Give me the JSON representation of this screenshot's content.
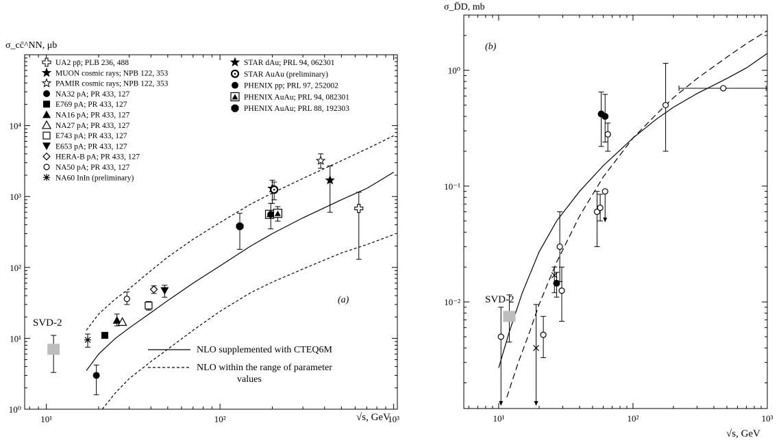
{
  "chart_data": [
    {
      "type": "scatter",
      "panel_label": "(a)",
      "ylabel": "σ_cc̄^NN, μb",
      "xlabel": "√s, GeV",
      "x_scale": "log",
      "y_scale": "log",
      "xlim": [
        7.5,
        1050
      ],
      "ylim": [
        1,
        100000
      ],
      "x_ticks": [
        {
          "v": 10,
          "label": "10¹"
        },
        {
          "v": 100,
          "label": "10²"
        },
        {
          "v": 1000,
          "label": "10³"
        }
      ],
      "y_ticks": [
        {
          "v": 1,
          "label": "10⁰"
        },
        {
          "v": 10,
          "label": "10¹"
        },
        {
          "v": 100,
          "label": "10²"
        },
        {
          "v": 1000,
          "label": "10³"
        },
        {
          "v": 10000,
          "label": "10⁴"
        }
      ],
      "annotation_svd": "SVD-2",
      "legend_left": [
        {
          "marker": "cross-open",
          "label": "UA2 pp̄; PLB 236, 488"
        },
        {
          "marker": "star-filled",
          "label": "MUON cosmic rays; NPB 122, 353"
        },
        {
          "marker": "star-open",
          "label": "PAMIR cosmic rays; NPB 122, 353"
        },
        {
          "marker": "circle-filled",
          "label": "NA32 pA; PR 433, 127"
        },
        {
          "marker": "square-filled",
          "label": "E769 pA; PR 433, 127"
        },
        {
          "marker": "triangle-filled",
          "label": "NA16 pA; PR 433, 127"
        },
        {
          "marker": "triangle-open",
          "label": "NA27 pA; PR 433, 127"
        },
        {
          "marker": "square-open",
          "label": "E743 pA; PR 433, 127"
        },
        {
          "marker": "triangle-down-filled",
          "label": "E653 pA; PR 433, 127"
        },
        {
          "marker": "diamond-open",
          "label": "HERA-B pA; PR 433, 127"
        },
        {
          "marker": "circle-open",
          "label": "NA50 pA; PR 433, 127"
        },
        {
          "marker": "asterisk",
          "label": "NA60 InIn (preliminary)"
        }
      ],
      "legend_right": [
        {
          "marker": "star-filled",
          "label": "STAR dAu; PRL 94, 062301"
        },
        {
          "marker": "circle-dot",
          "label": "STAR AuAu (preliminary)"
        },
        {
          "marker": "circle-filled",
          "label": "PHENIX pp; PRL 97, 252002"
        },
        {
          "marker": "triangle-in-square",
          "label": "PHENIX AuAu; PRL 94, 082301"
        },
        {
          "marker": "octagon-filled",
          "label": "PHENIX AuAu; PRL 88, 192303"
        }
      ],
      "line_legend": [
        {
          "style": "solid",
          "label": "NLO supplemented with CTEQ6M"
        },
        {
          "style": "dashed",
          "label": "NLO within the range of parameter"
        },
        {
          "style": "none",
          "label": "values"
        }
      ],
      "series": [
        {
          "name": "NLO supplemented with CTEQ6M",
          "style": "solid",
          "x": [
            17,
            20,
            25,
            30,
            40,
            50,
            70,
            100,
            150,
            200,
            300,
            500,
            700,
            1000
          ],
          "y": [
            3.5,
            6,
            10,
            14,
            23,
            34,
            60,
            105,
            200,
            300,
            500,
            900,
            1300,
            2200
          ]
        },
        {
          "name": "dashed-upper",
          "style": "dashed",
          "x": [
            17,
            20,
            25,
            30,
            40,
            50,
            70,
            100,
            150,
            200,
            300,
            500,
            700,
            1000
          ],
          "y": [
            13,
            22,
            36,
            50,
            90,
            140,
            250,
            430,
            780,
            1120,
            1800,
            3200,
            4700,
            7200
          ]
        },
        {
          "name": "dashed-lower",
          "style": "dashed",
          "x": [
            21,
            25,
            30,
            40,
            50,
            70,
            100,
            150,
            200,
            300,
            500,
            700,
            1000
          ],
          "y": [
            1,
            1.7,
            2.7,
            4.7,
            7,
            13,
            24,
            44,
            62,
            95,
            160,
            210,
            290
          ]
        }
      ],
      "points": [
        {
          "marker": "square-gray",
          "x": 11,
          "y": 7,
          "lo": 3.3,
          "hi": 11
        },
        {
          "marker": "asterisk",
          "x": 17.3,
          "y": 9.5,
          "lo": 7.5,
          "hi": 11.5
        },
        {
          "marker": "circle-filled",
          "x": 19.4,
          "y": 3,
          "lo": 1.6,
          "hi": 4.2
        },
        {
          "marker": "square-filled",
          "x": 21.7,
          "y": 11
        },
        {
          "marker": "triangle-filled",
          "x": 25.5,
          "y": 18,
          "lo": 15,
          "hi": 22
        },
        {
          "marker": "triangle-open",
          "x": 27.4,
          "y": 17
        },
        {
          "marker": "circle-open",
          "x": 29.1,
          "y": 36,
          "lo": 30,
          "hi": 45
        },
        {
          "marker": "square-open",
          "x": 38.8,
          "y": 29,
          "lo": 25,
          "hi": 33
        },
        {
          "marker": "diamond-open",
          "x": 41.6,
          "y": 49,
          "lo": 43,
          "hi": 55
        },
        {
          "marker": "triangle-down-filled",
          "x": 48,
          "y": 47,
          "lo": 38,
          "hi": 56
        },
        {
          "marker": "octagon-filled",
          "x": 130,
          "y": 380,
          "lo": 180,
          "hi": 580
        },
        {
          "marker": "triangle-in-square",
          "x": 193,
          "y": 560,
          "lo": 500,
          "hi": 620
        },
        {
          "marker": "circle-filled",
          "x": 196,
          "y": 560,
          "lo": 350,
          "hi": 800
        },
        {
          "marker": "star-filled",
          "x": 200,
          "y": 1300,
          "lo": 800,
          "hi": 1700
        },
        {
          "marker": "circle-dot",
          "x": 205,
          "y": 1250,
          "lo": 900,
          "hi": 1600
        },
        {
          "marker": "triangle-in-square",
          "x": 215,
          "y": 580,
          "lo": 450,
          "hi": 720
        },
        {
          "marker": "star-open",
          "x": 380,
          "y": 3200,
          "lo": 2500,
          "hi": 4000
        },
        {
          "marker": "star-filled",
          "x": 430,
          "y": 1700,
          "lo": 600,
          "hi": 2700
        },
        {
          "marker": "cross-open",
          "x": 630,
          "y": 680,
          "lo": 130,
          "hi": 1150
        }
      ]
    },
    {
      "type": "scatter",
      "panel_label": "(b)",
      "ylabel": "σ_D̄D, mb",
      "xlabel": "√s, GeV",
      "x_scale": "log",
      "y_scale": "log",
      "xlim": [
        5.5,
        1000
      ],
      "ylim": [
        0.0012,
        3
      ],
      "x_ticks": [
        {
          "v": 10,
          "label": "10¹"
        },
        {
          "v": 100,
          "label": "10²"
        },
        {
          "v": 1000,
          "label": "10³"
        }
      ],
      "y_ticks": [
        {
          "v": 0.01,
          "label": "10⁻²"
        },
        {
          "v": 0.1,
          "label": "10⁻¹"
        },
        {
          "v": 1,
          "label": "10⁰"
        }
      ],
      "annotation_svd": "SVD-2",
      "series": [
        {
          "name": "solid",
          "style": "solid",
          "x": [
            10,
            12,
            15,
            20,
            27,
            40,
            60,
            100,
            150,
            200,
            300,
            500,
            700,
            1000
          ],
          "y": [
            0.0027,
            0.0055,
            0.012,
            0.027,
            0.05,
            0.09,
            0.15,
            0.26,
            0.38,
            0.48,
            0.63,
            0.85,
            1.05,
            1.4
          ]
        },
        {
          "name": "dashed",
          "style": "dashed",
          "x": [
            11.5,
            14,
            17,
            20,
            27,
            40,
            60,
            100,
            150,
            200,
            300,
            500,
            700,
            1000
          ],
          "y": [
            0.0015,
            0.003,
            0.0055,
            0.0095,
            0.022,
            0.055,
            0.12,
            0.26,
            0.42,
            0.58,
            0.85,
            1.3,
            1.7,
            2.2
          ]
        }
      ],
      "points": [
        {
          "marker": "square-gray",
          "x": 12,
          "y": 0.0075,
          "lo": 0.0045,
          "hi": 0.0115
        },
        {
          "marker": "circle-open",
          "x": 10.4,
          "y": 0.005,
          "lo": 0.0013,
          "hi": 0.009,
          "arrow": "down"
        },
        {
          "marker": "cross",
          "x": 19,
          "y": 0.004,
          "lo": 0.0013,
          "hi": 0.0095,
          "arrow": "down"
        },
        {
          "marker": "circle-open",
          "x": 21.5,
          "y": 0.0052,
          "lo": 0.0033,
          "hi": 0.0075
        },
        {
          "marker": "cross",
          "x": 26,
          "y": 0.017,
          "lo": 0.012,
          "hi": 0.02
        },
        {
          "marker": "circle-filled",
          "x": 27,
          "y": 0.0145,
          "lo": 0.011,
          "hi": 0.018
        },
        {
          "marker": "circle-open",
          "x": 28.5,
          "y": 0.03,
          "lo": 0.015,
          "hi": 0.06
        },
        {
          "marker": "circle-open",
          "x": 29.5,
          "y": 0.0125,
          "lo": 0.0068,
          "hi": 0.02
        },
        {
          "marker": "circle-open",
          "x": 54,
          "y": 0.06,
          "lo": 0.03,
          "hi": 0.09
        },
        {
          "marker": "circle-open",
          "x": 57,
          "y": 0.065,
          "lo": 0.05,
          "hi": 0.085
        },
        {
          "marker": "circle-open",
          "x": 62,
          "y": 0.09,
          "lo": 0.05,
          "hi": 0.09,
          "arrow": "down"
        },
        {
          "marker": "circle-filled",
          "x": 58,
          "y": 0.42,
          "lo": 0.22,
          "hi": 0.65
        },
        {
          "marker": "circle-filled",
          "x": 62,
          "y": 0.4,
          "lo": 0.24,
          "hi": 0.62
        },
        {
          "marker": "circle-open",
          "x": 65,
          "y": 0.28,
          "lo": 0.2,
          "hi": 0.35
        },
        {
          "marker": "circle-open",
          "x": 175,
          "y": 0.5,
          "lo": 0.2,
          "hi": 1.15
        },
        {
          "marker": "circle-open",
          "x": 470,
          "y": 0.7,
          "xlo": 220,
          "xhi": 980,
          "hi": 1.8,
          "arrow": "up"
        }
      ]
    }
  ]
}
